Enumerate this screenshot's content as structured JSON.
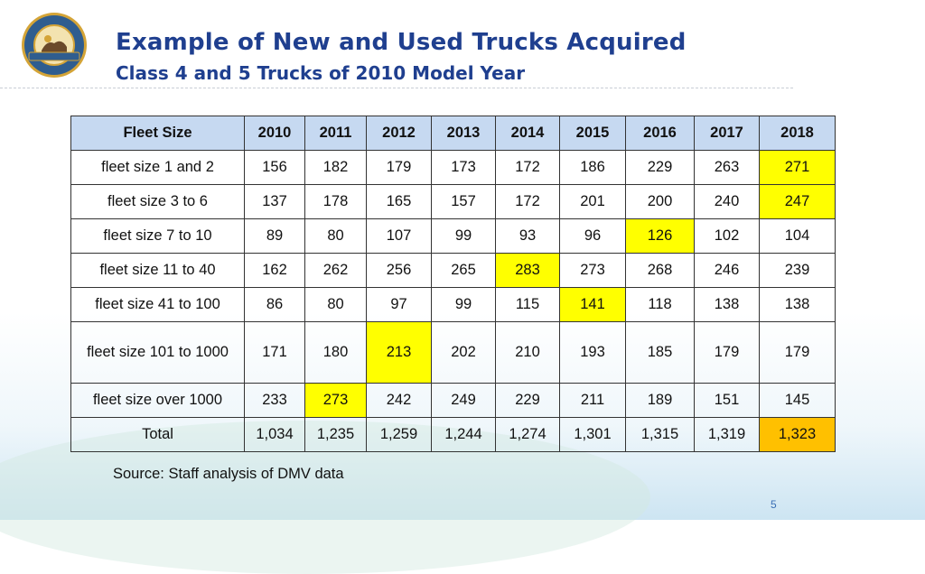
{
  "logo": {
    "top_text": "STATE OF CALIFORNIA",
    "bottom_text": "ENERGY COMMISSION"
  },
  "header": {
    "title": "Example of New and Used Trucks Acquired",
    "subtitle": "Class 4 and 5 Trucks of 2010 Model Year"
  },
  "table": {
    "columns": [
      "Fleet Size",
      "2010",
      "2011",
      "2012",
      "2013",
      "2014",
      "2015",
      "2016",
      "2017",
      "2018"
    ],
    "rows": [
      {
        "label": "fleet size 1 and 2",
        "values": [
          "156",
          "182",
          "179",
          "173",
          "172",
          "186",
          "229",
          "263",
          "271"
        ],
        "highlight_index": 8,
        "highlight_color": "#ffff00"
      },
      {
        "label": "fleet size 3 to 6",
        "values": [
          "137",
          "178",
          "165",
          "157",
          "172",
          "201",
          "200",
          "240",
          "247"
        ],
        "highlight_index": 8,
        "highlight_color": "#ffff00"
      },
      {
        "label": "fleet size 7 to 10",
        "values": [
          "89",
          "80",
          "107",
          "99",
          "93",
          "96",
          "126",
          "102",
          "104"
        ],
        "highlight_index": 6,
        "highlight_color": "#ffff00"
      },
      {
        "label": "fleet size 11 to 40",
        "values": [
          "162",
          "262",
          "256",
          "265",
          "283",
          "273",
          "268",
          "246",
          "239"
        ],
        "highlight_index": 4,
        "highlight_color": "#ffff00"
      },
      {
        "label": "fleet size 41 to 100",
        "values": [
          "86",
          "80",
          "97",
          "99",
          "115",
          "141",
          "118",
          "138",
          "138"
        ],
        "highlight_index": 5,
        "highlight_color": "#ffff00"
      },
      {
        "label": "fleet size 101 to 1000",
        "values": [
          "171",
          "180",
          "213",
          "202",
          "210",
          "193",
          "185",
          "179",
          "179"
        ],
        "highlight_index": 2,
        "highlight_color": "#ffff00"
      },
      {
        "label": "fleet size over 1000",
        "values": [
          "233",
          "273",
          "242",
          "249",
          "229",
          "211",
          "189",
          "151",
          "145"
        ],
        "highlight_index": 1,
        "highlight_color": "#ffff00"
      },
      {
        "label": "Total",
        "values": [
          "1,034",
          "1,235",
          "1,259",
          "1,244",
          "1,274",
          "1,301",
          "1,315",
          "1,319",
          "1,323"
        ],
        "highlight_index": 8,
        "highlight_color": "#ffc000"
      }
    ]
  },
  "footer": {
    "source": "Source: Staff analysis of DMV data",
    "page_number": "5"
  },
  "colors": {
    "title": "#1f3f8f",
    "header_fill": "#c6d9f1",
    "highlight_yellow": "#ffff00",
    "highlight_orange": "#ffc000"
  }
}
